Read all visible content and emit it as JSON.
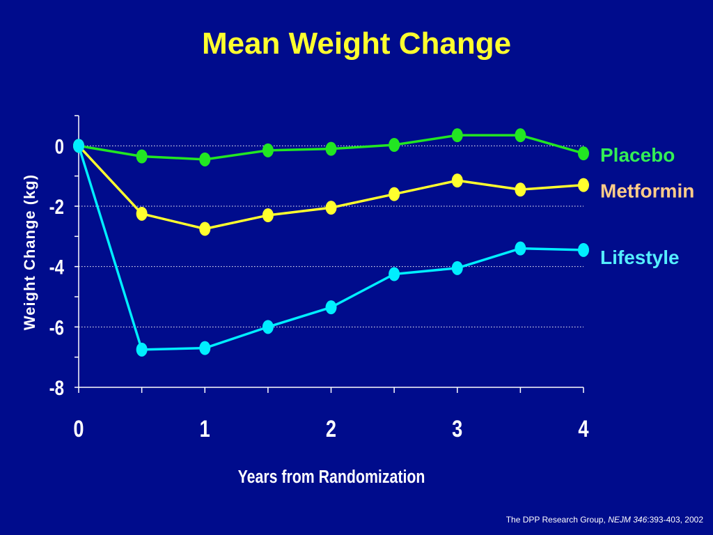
{
  "slide": {
    "title": "Mean Weight Change",
    "citation_prefix": "The DPP Research Group, ",
    "citation_journal": "NEJM 346",
    "citation_suffix": ":393-403, 2002"
  },
  "chart_data": {
    "type": "line",
    "title": "Mean Weight Change",
    "xlabel": "Years from Randomization",
    "ylabel": "Weight Change (kg)",
    "xlim": [
      0,
      4
    ],
    "ylim": [
      -8,
      1
    ],
    "x_ticks": [
      0,
      1,
      2,
      3,
      4
    ],
    "x_minor_ticks": [
      0.5,
      1.5,
      2.5,
      3.5
    ],
    "y_ticks": [
      0,
      -2,
      -4,
      -6,
      -8
    ],
    "y_minor_ticks": [
      1,
      -1,
      -3,
      -5,
      -7
    ],
    "grid": "dotted horizontal at labeled y ticks",
    "legend": "right, labels at line ends",
    "x": [
      0,
      0.5,
      1,
      1.5,
      2,
      2.5,
      3,
      3.5,
      4
    ],
    "series": [
      {
        "name": "Placebo",
        "color": "#22e622",
        "label_color": "#33ee55",
        "values": [
          0,
          -0.35,
          -0.45,
          -0.15,
          -0.1,
          0.03,
          0.35,
          0.35,
          -0.25
        ]
      },
      {
        "name": "Metformin",
        "color": "#ffff2e",
        "label_color": "#ffcc88",
        "values": [
          0,
          -2.25,
          -2.75,
          -2.3,
          -2.05,
          -1.6,
          -1.15,
          -1.45,
          -1.3
        ]
      },
      {
        "name": "Lifestyle",
        "color": "#00eeff",
        "label_color": "#55eeff",
        "values": [
          0,
          -6.75,
          -6.7,
          -6.0,
          -5.35,
          -4.25,
          -4.05,
          -3.4,
          -3.45
        ]
      }
    ]
  }
}
